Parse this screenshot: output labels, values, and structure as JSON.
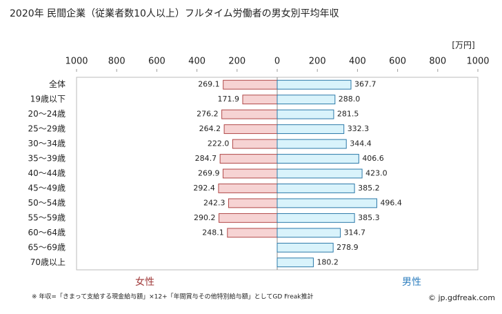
{
  "chart_data": {
    "type": "butterfly",
    "title": "2020年 民間企業（従業者数10人以上）フルタイム労働者の男女別平均年収",
    "unit": "[万円]",
    "categories": [
      "全体",
      "19歳以下",
      "20～24歳",
      "25～29歳",
      "30～34歳",
      "35～39歳",
      "40～44歳",
      "45～49歳",
      "50～54歳",
      "55～59歳",
      "60～64歳",
      "65～69歳",
      "70歳以上"
    ],
    "series": [
      {
        "name": "女性",
        "side": "left",
        "color": "#f6d3d3",
        "stroke": "#b04848",
        "label_color": "#a03a3a",
        "values": [
          269.1,
          171.9,
          276.2,
          264.2,
          222.0,
          284.7,
          269.9,
          292.4,
          242.3,
          290.2,
          248.1,
          null,
          null
        ],
        "value_labels": [
          "269.1",
          "171.9",
          "276.2",
          "264.2",
          "222.0",
          "284.7",
          "269.9",
          "292.4",
          "242.3",
          "290.2",
          "248.1",
          null,
          null
        ]
      },
      {
        "name": "男性",
        "side": "right",
        "color": "#d9f3fb",
        "stroke": "#2a78a8",
        "label_color": "#2f7fbf",
        "values": [
          367.7,
          288.0,
          281.5,
          332.3,
          344.4,
          406.6,
          423.0,
          385.2,
          496.4,
          385.3,
          314.7,
          278.9,
          180.2
        ],
        "value_labels": [
          "367.7",
          "288.0",
          "281.5",
          "332.3",
          "344.4",
          "406.6",
          "423.0",
          "385.2",
          "496.4",
          "385.3",
          "314.7",
          "278.9",
          "180.2"
        ]
      }
    ],
    "xlim": [
      0,
      1000
    ],
    "left_xticks": [
      1000,
      800,
      600,
      400,
      200
    ],
    "right_xticks": [
      0,
      200,
      400,
      600,
      800,
      1000
    ],
    "footnote": "※ 年収=「きまって支給する現金給与額」×12+「年間賞与その他特別給与額」としてGD Freak推計",
    "credit": "© jp.gdfreak.com"
  }
}
